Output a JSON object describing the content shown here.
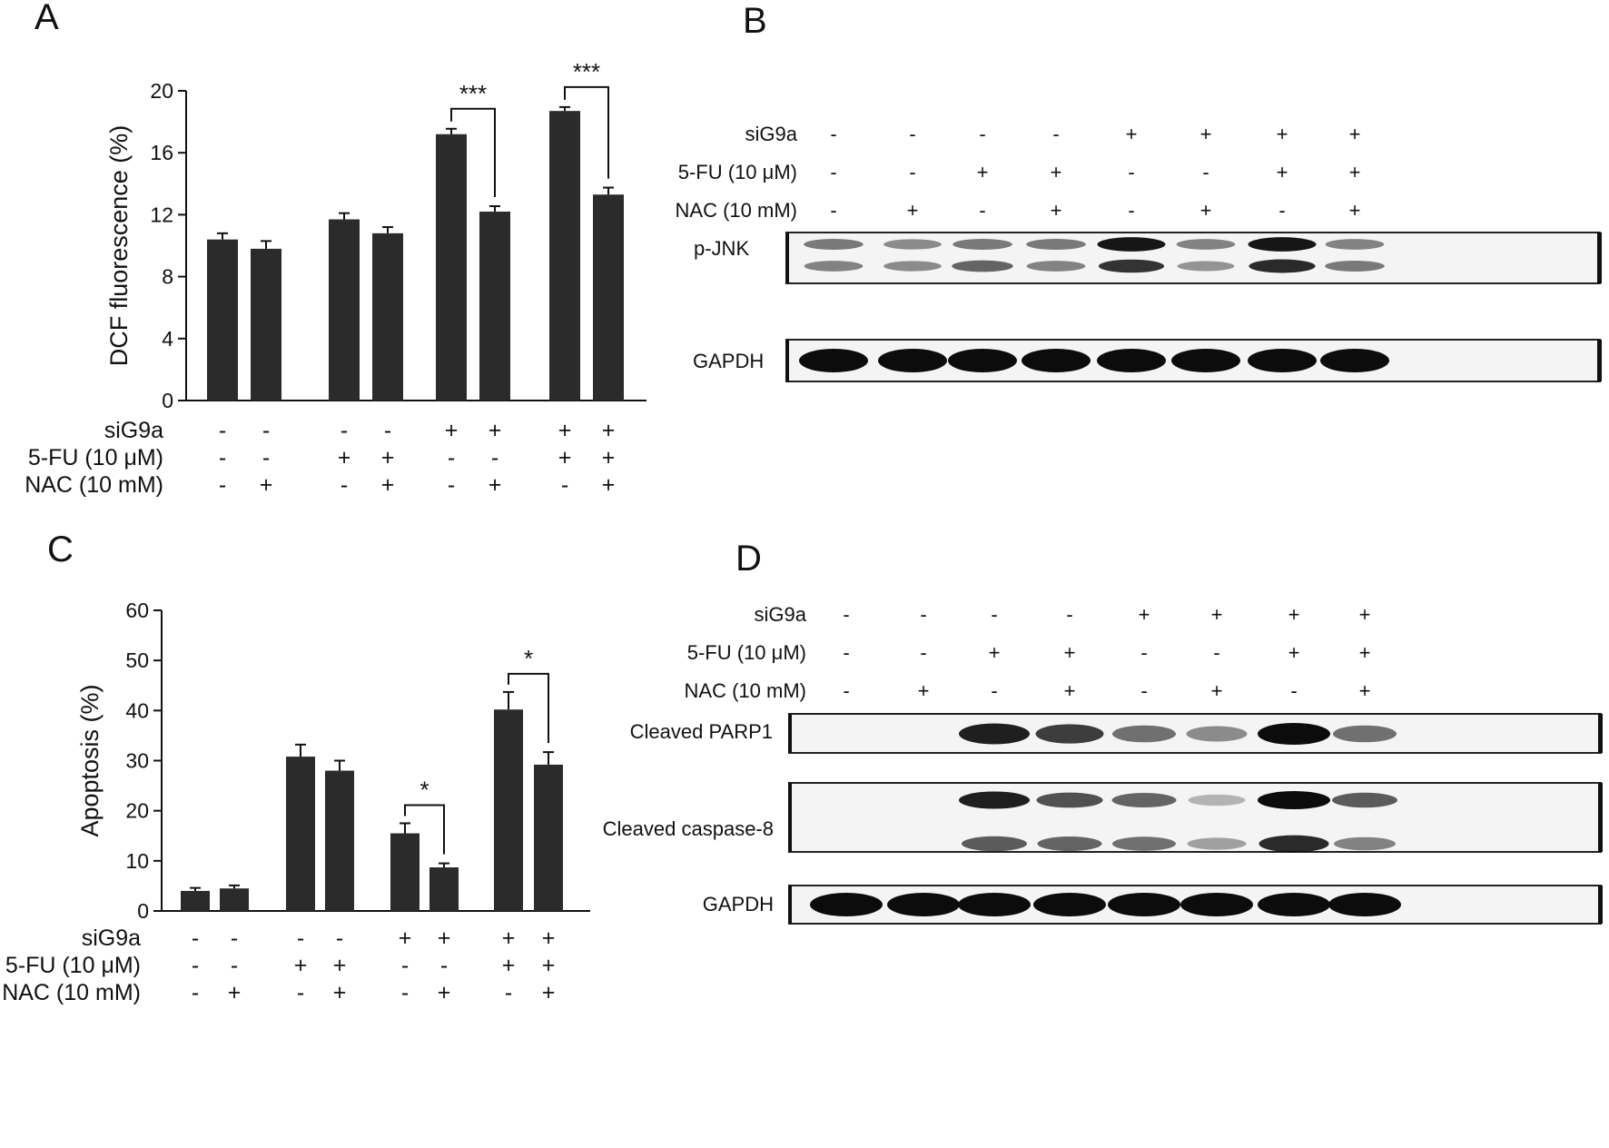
{
  "panels": {
    "A": {
      "letter": "A",
      "chart_data": {
        "type": "bar",
        "ylabel": "DCF fluorescence (%)",
        "ylim": [
          0,
          20
        ],
        "yticks": [
          0,
          4,
          8,
          12,
          16,
          20
        ],
        "values": [
          10.4,
          9.8,
          11.7,
          10.8,
          17.2,
          12.2,
          18.7,
          13.3
        ],
        "errors": [
          0.4,
          0.5,
          0.4,
          0.4,
          0.35,
          0.35,
          0.25,
          0.45
        ],
        "bar_color": "#2b2b2b",
        "significance": [
          {
            "from": 4,
            "to": 5,
            "label": "***"
          },
          {
            "from": 6,
            "to": 7,
            "label": "***"
          }
        ],
        "conditions": [
          {
            "label": "siG9a",
            "values": [
              "-",
              "-",
              "-",
              "-",
              "+",
              "+",
              "+",
              "+"
            ]
          },
          {
            "label": "5-FU (10 μM)",
            "values": [
              "-",
              "-",
              "+",
              "+",
              "-",
              "-",
              "+",
              "+"
            ]
          },
          {
            "label": "NAC (10 mM)",
            "values": [
              "-",
              "+",
              "-",
              "+",
              "-",
              "+",
              "-",
              "+"
            ]
          }
        ]
      }
    },
    "B": {
      "letter": "B",
      "conditions": [
        {
          "label": "siG9a",
          "values": [
            "-",
            "-",
            "-",
            "-",
            "+",
            "+",
            "+",
            "+"
          ]
        },
        {
          "label": "5-FU (10 μM)",
          "values": [
            "-",
            "-",
            "+",
            "+",
            "-",
            "-",
            "+",
            "+"
          ]
        },
        {
          "label": "NAC (10 mM)",
          "values": [
            "-",
            "+",
            "-",
            "+",
            "-",
            "+",
            "-",
            "+"
          ]
        }
      ],
      "blots": [
        {
          "label": "p-JNK",
          "bands": [
            {
              "intensity": [
                0.45,
                0.35,
                0.45,
                0.45,
                0.95,
                0.4,
                0.95,
                0.4
              ]
            },
            {
              "intensity": [
                0.4,
                0.35,
                0.55,
                0.4,
                0.8,
                0.3,
                0.85,
                0.45
              ]
            }
          ]
        },
        {
          "label": "GAPDH",
          "bands": [
            {
              "intensity": [
                1,
                1,
                1,
                1,
                1,
                1,
                1,
                1
              ]
            }
          ]
        }
      ]
    },
    "C": {
      "letter": "C",
      "chart_data": {
        "type": "bar",
        "ylabel": "Apoptosis (%)",
        "ylim": [
          0,
          60
        ],
        "yticks": [
          0,
          10,
          20,
          30,
          40,
          50,
          60
        ],
        "values": [
          4.0,
          4.5,
          30.8,
          28.0,
          15.5,
          8.7,
          40.2,
          29.2
        ],
        "errors": [
          0.6,
          0.6,
          2.4,
          2.0,
          2.0,
          0.8,
          3.5,
          2.5
        ],
        "bar_color": "#2b2b2b",
        "significance": [
          {
            "from": 4,
            "to": 5,
            "label": "*"
          },
          {
            "from": 6,
            "to": 7,
            "label": "*"
          }
        ],
        "conditions": [
          {
            "label": "siG9a",
            "values": [
              "-",
              "-",
              "-",
              "-",
              "+",
              "+",
              "+",
              "+"
            ]
          },
          {
            "label": "5-FU (10 μM)",
            "values": [
              "-",
              "-",
              "+",
              "+",
              "-",
              "-",
              "+",
              "+"
            ]
          },
          {
            "label": "NAC (10 mM)",
            "values": [
              "-",
              "+",
              "-",
              "+",
              "-",
              "+",
              "-",
              "+"
            ]
          }
        ]
      }
    },
    "D": {
      "letter": "D",
      "conditions": [
        {
          "label": "siG9a",
          "values": [
            "-",
            "-",
            "-",
            "-",
            "+",
            "+",
            "+",
            "+"
          ]
        },
        {
          "label": "5-FU (10 μM)",
          "values": [
            "-",
            "-",
            "+",
            "+",
            "-",
            "-",
            "+",
            "+"
          ]
        },
        {
          "label": "NAC (10 mM)",
          "values": [
            "-",
            "+",
            "-",
            "+",
            "-",
            "+",
            "-",
            "+"
          ]
        }
      ],
      "blots": [
        {
          "label": "Cleaved PARP1",
          "bands": [
            {
              "intensity": [
                0,
                0,
                0.9,
                0.75,
                0.5,
                0.35,
                1,
                0.5
              ]
            }
          ]
        },
        {
          "label": "Cleaved caspase-8",
          "bands": [
            {
              "intensity": [
                0,
                0,
                0.9,
                0.65,
                0.55,
                0.15,
                1,
                0.6
              ]
            },
            {
              "intensity": [
                0,
                0,
                0.6,
                0.55,
                0.5,
                0.25,
                0.85,
                0.4
              ]
            }
          ]
        },
        {
          "label": "GAPDH",
          "bands": [
            {
              "intensity": [
                1,
                1,
                1,
                1,
                1,
                1,
                1,
                1
              ]
            }
          ]
        }
      ]
    }
  }
}
